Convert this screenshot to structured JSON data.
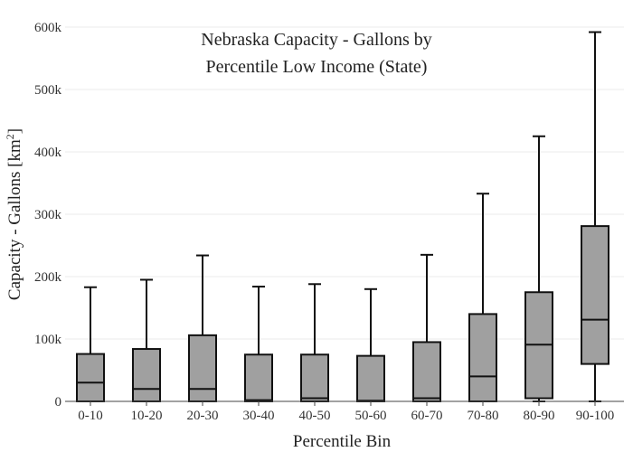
{
  "chart_data": {
    "type": "box",
    "title_line1": "Nebraska Capacity - Gallons by",
    "title_line2": "Percentile Low Income (State)",
    "xlabel": "Percentile Bin",
    "ylabel_main": "Capacity - Gallons  [km",
    "ylabel_sup": "2",
    "ylabel_close": "]",
    "ylim": [
      0,
      600000
    ],
    "y_ticks": [
      0,
      100000,
      200000,
      300000,
      400000,
      500000,
      600000
    ],
    "y_tick_labels": [
      "0",
      "100k",
      "200k",
      "300k",
      "400k",
      "500k",
      "600k"
    ],
    "grid": true,
    "box_color": "#a0a0a0",
    "categories": [
      "0-10",
      "10-20",
      "20-30",
      "30-40",
      "40-50",
      "50-60",
      "60-70",
      "70-80",
      "80-90",
      "90-100"
    ],
    "boxes": [
      {
        "min": 0,
        "q1": 0,
        "median": 30000,
        "q3": 76000,
        "max": 183000
      },
      {
        "min": 0,
        "q1": 0,
        "median": 20000,
        "q3": 84000,
        "max": 195000
      },
      {
        "min": 0,
        "q1": 0,
        "median": 20000,
        "q3": 106000,
        "max": 234000
      },
      {
        "min": 0,
        "q1": 0,
        "median": 2000,
        "q3": 75000,
        "max": 184000
      },
      {
        "min": 0,
        "q1": 0,
        "median": 5000,
        "q3": 75000,
        "max": 188000
      },
      {
        "min": 0,
        "q1": 0,
        "median": 1000,
        "q3": 73000,
        "max": 180000
      },
      {
        "min": 0,
        "q1": 0,
        "median": 5000,
        "q3": 95000,
        "max": 235000
      },
      {
        "min": 0,
        "q1": 0,
        "median": 40000,
        "q3": 140000,
        "max": 333000
      },
      {
        "min": 0,
        "q1": 5000,
        "median": 91000,
        "q3": 175000,
        "max": 425000
      },
      {
        "min": 0,
        "q1": 60000,
        "median": 131000,
        "q3": 281000,
        "max": 592000
      }
    ]
  }
}
